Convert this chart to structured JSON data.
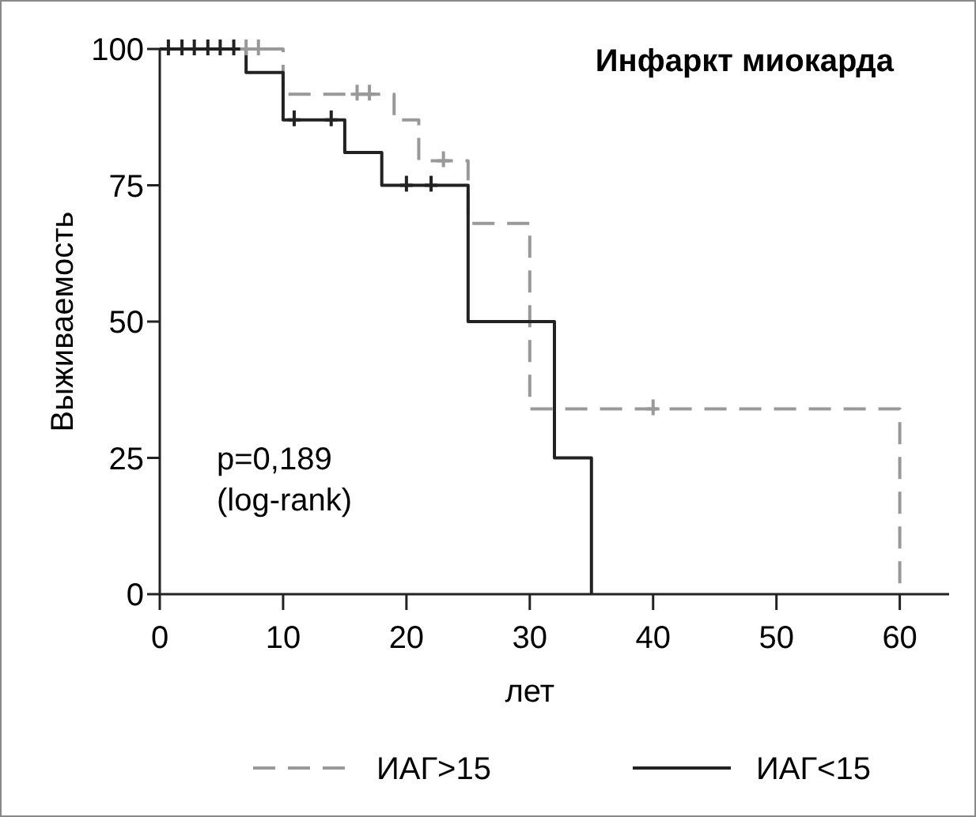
{
  "chart_data": {
    "type": "step",
    "title": "Инфаркт миокарда",
    "xlabel": "лет",
    "ylabel": "Выживаемость",
    "xlim": [
      0,
      64
    ],
    "xticks": [
      0,
      10,
      20,
      30,
      40,
      50,
      60
    ],
    "ylim": [
      0,
      100
    ],
    "yticks": [
      0,
      25,
      50,
      75,
      100
    ],
    "grid": false,
    "legend": "bottom",
    "annotations": [
      "p=0,189\n(log-rank)"
    ],
    "series": [
      {
        "name": "ИАГ>15",
        "color": "#999999",
        "line_style": "dashed",
        "x": [
          0,
          10,
          19,
          21,
          25,
          30,
          60
        ],
        "values": [
          100,
          91.7,
          87,
          79.5,
          68,
          34,
          0
        ]
      },
      {
        "name": "ИАГ<15",
        "color": "#222222",
        "line_style": "solid",
        "x": [
          0,
          7,
          10,
          15,
          18,
          25,
          32,
          35
        ],
        "values": [
          100,
          95.7,
          87,
          81,
          75,
          50,
          25,
          0
        ]
      },
      {
        "type": "scatter",
        "color": "#999999",
        "x": [
          7,
          8,
          16,
          17,
          23,
          40
        ],
        "values": [
          100,
          100,
          91.7,
          91.7,
          79.5,
          34
        ]
      },
      {
        "type": "scatter",
        "color": "#222222",
        "x": [
          0.7,
          1.8,
          2.8,
          3.9,
          4.9,
          6,
          10.9,
          13.9,
          20,
          22
        ],
        "values": [
          100,
          100,
          100,
          100,
          100,
          100,
          87,
          87,
          75,
          75
        ]
      }
    ]
  }
}
